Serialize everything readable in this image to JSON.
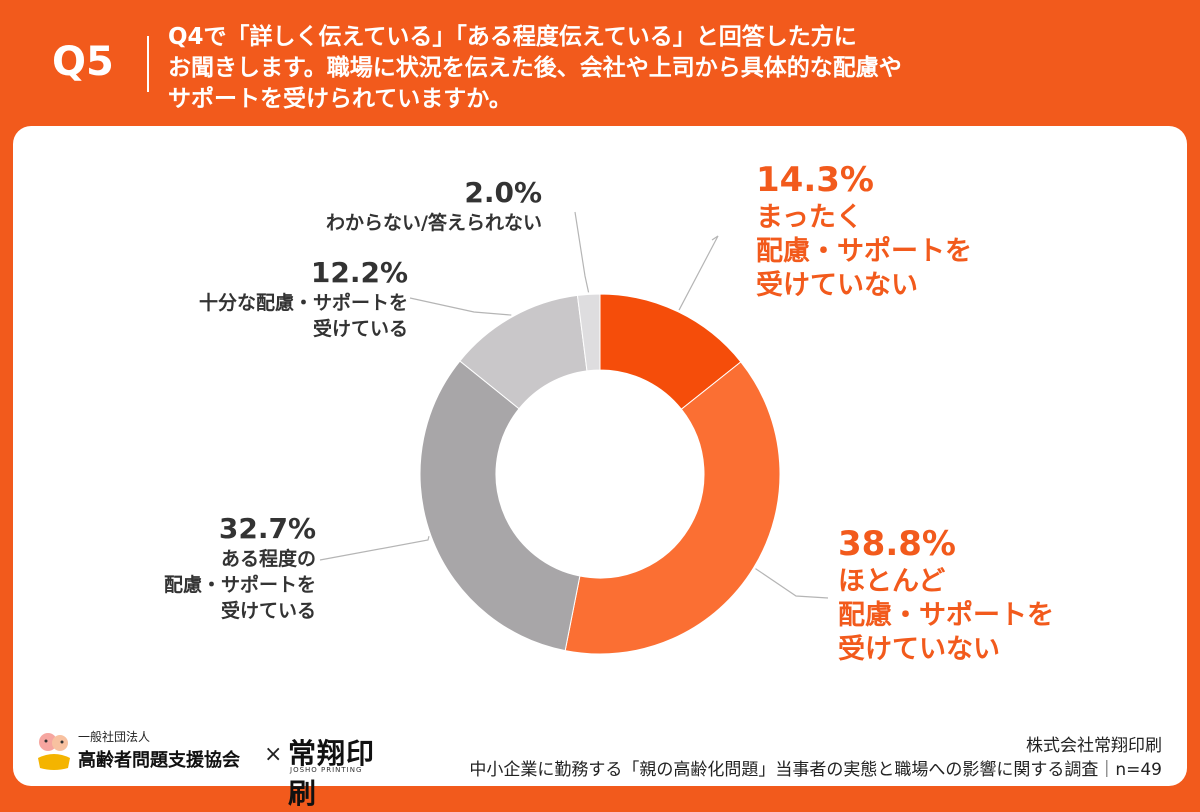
{
  "header": {
    "qnum": "Q5",
    "question_lines": [
      "Q4で「詳しく伝えている」「ある程度伝えている」と回答した方に",
      "お聞きします。職場に状況を伝えた後、会社や上司から具体的な配慮や",
      "サポートを受けられていますか。"
    ]
  },
  "colors": {
    "accent": "#f25a1c",
    "slice_1": "#f54d0a",
    "slice_2": "#fb6f33",
    "slice_3": "#a8a6a8",
    "slice_4": "#c9c7c9",
    "slice_5": "#dedddf"
  },
  "chart_data": {
    "type": "pie",
    "style": "donut",
    "n": 49,
    "slices": [
      {
        "value": 14.3,
        "pct_label": "14.3%",
        "label_lines": [
          "まったく",
          "配慮・サポートを",
          "受けていない"
        ]
      },
      {
        "value": 38.8,
        "pct_label": "38.8%",
        "label_lines": [
          "ほとんど",
          "配慮・サポートを",
          "受けていない"
        ]
      },
      {
        "value": 32.7,
        "pct_label": "32.7%",
        "label_lines": [
          "ある程度の",
          "配慮・サポートを",
          "受けている"
        ]
      },
      {
        "value": 12.2,
        "pct_label": "12.2%",
        "label_lines": [
          "十分な配慮・サポートを",
          "受けている"
        ]
      },
      {
        "value": 2.0,
        "pct_label": "2.0%",
        "label_lines": [
          "わからない/答えられない"
        ]
      }
    ]
  },
  "footer": {
    "org_small": "一般社団法人",
    "org_name": "高齢者問題支援協会",
    "times": "×",
    "brand": "常翔印刷",
    "brand_sub": "JOSHO PRINTING",
    "company": "株式会社常翔印刷",
    "survey": "中小企業に勤務する「親の高齢化問題」当事者の実態と職場への影響に関する調査｜n=49"
  }
}
